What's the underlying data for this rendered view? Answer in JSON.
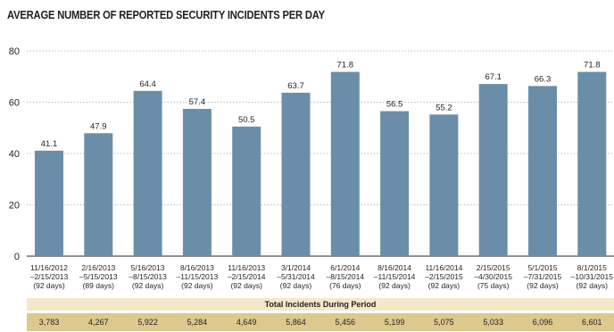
{
  "chart_data": {
    "type": "bar",
    "title": "AVERAGE NUMBER OF REPORTED SECURITY INCIDENTS PER DAY",
    "xlabel": "",
    "ylabel": "",
    "ylim": [
      0,
      80
    ],
    "yticks": [
      "0",
      "20",
      "40",
      "60",
      "80"
    ],
    "grid": true,
    "bar_color": "#6b8ea8",
    "categories": [
      {
        "line1": "11/16/2012",
        "line2": "–2/15/2013",
        "line3": "(92 days)"
      },
      {
        "line1": "2/16/2013",
        "line2": "–5/15/2013",
        "line3": "(89 days)"
      },
      {
        "line1": "5/16/2013",
        "line2": "–8/15/2013",
        "line3": "(92 days)"
      },
      {
        "line1": "8/16/2013",
        "line2": "–11/15/2013",
        "line3": "(92 days)"
      },
      {
        "line1": "11/16/2013",
        "line2": "–2/15/2014",
        "line3": "(92 days)"
      },
      {
        "line1": "3/1/2014",
        "line2": "–5/31/2014",
        "line3": "(92 days)"
      },
      {
        "line1": "6/1/2014",
        "line2": "–8/15/2014",
        "line3": "(76 days)"
      },
      {
        "line1": "8/16/2014",
        "line2": "–11/15/2014",
        "line3": "(92 days)"
      },
      {
        "line1": "11/16/2014",
        "line2": "–2/15/2015",
        "line3": "(92 days)"
      },
      {
        "line1": "2/15/2015",
        "line2": "–4/30/2015",
        "line3": "(75 days)"
      },
      {
        "line1": "5/1/2015",
        "line2": "–7/31/2015",
        "line3": "(92 days)"
      },
      {
        "line1": "8/1/2015",
        "line2": "–10/31/2015",
        "line3": "(92 days)"
      }
    ],
    "values": [
      41.1,
      47.9,
      64.4,
      57.4,
      50.5,
      63.7,
      71.8,
      56.5,
      55.2,
      67.1,
      66.3,
      71.8
    ],
    "value_labels": [
      "41.1",
      "47.9",
      "64.4",
      "57.4",
      "50.5",
      "63.7",
      "71.8",
      "56.5",
      "55.2",
      "67.1",
      "66.3",
      "71.8"
    ],
    "totals_label": "Total Incidents During Period",
    "totals": [
      "3,783",
      "4,267",
      "5,922",
      "5,284",
      "4,649",
      "5,864",
      "5,456",
      "5,199",
      "5,075",
      "5,033",
      "6,096",
      "6,601"
    ],
    "totals_header_color": "#f3e9c8",
    "totals_row_color": "#dcc98e"
  }
}
